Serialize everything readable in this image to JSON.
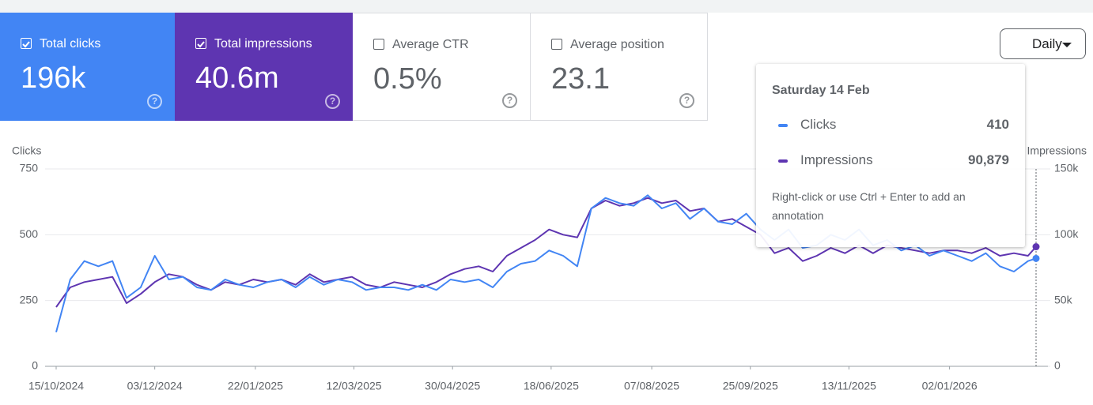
{
  "cards": [
    {
      "label": "Total clicks",
      "value": "196k",
      "checked": true,
      "color": "#4285f4"
    },
    {
      "label": "Total impressions",
      "value": "40.6m",
      "checked": true,
      "color": "#5e35b1"
    },
    {
      "label": "Average CTR",
      "value": "0.5%",
      "checked": false,
      "color": "#ffffff"
    },
    {
      "label": "Average position",
      "value": "23.1",
      "checked": false,
      "color": "#ffffff"
    }
  ],
  "period_selector": "Daily",
  "tooltip": {
    "date": "Saturday 14 Feb",
    "values": [
      "410",
      "90,879"
    ],
    "hint": "Right-click or use Ctrl + Enter to add an annotation"
  },
  "chart_data": {
    "type": "line",
    "y_label": "Clicks",
    "y2_label": "Impressions",
    "x": [
      "15/10/2024",
      "22/10/2024",
      "29/10/2024",
      "05/11/2024",
      "12/11/2024",
      "19/11/2024",
      "26/11/2024",
      "03/12/2024",
      "10/12/2024",
      "17/12/2024",
      "24/12/2024",
      "31/12/2024",
      "07/01/2025",
      "14/01/2025",
      "21/01/2025",
      "28/01/2025",
      "04/02/2025",
      "11/02/2025",
      "18/02/2025",
      "25/02/2025",
      "04/03/2025",
      "11/03/2025",
      "18/03/2025",
      "25/03/2025",
      "01/04/2025",
      "08/04/2025",
      "15/04/2025",
      "22/04/2025",
      "29/04/2025",
      "06/05/2025",
      "13/05/2025",
      "20/05/2025",
      "27/05/2025",
      "03/06/2025",
      "10/06/2025",
      "17/06/2025",
      "24/06/2025",
      "01/07/2025",
      "08/07/2025",
      "15/07/2025",
      "22/07/2025",
      "29/07/2025",
      "05/08/2025",
      "12/08/2025",
      "19/08/2025",
      "26/08/2025",
      "02/09/2025",
      "09/09/2025",
      "16/09/2025",
      "23/09/2025",
      "30/09/2025",
      "07/10/2025",
      "14/10/2025",
      "21/10/2025",
      "28/10/2025",
      "04/11/2025",
      "11/11/2025",
      "18/11/2025",
      "25/11/2025",
      "02/12/2025",
      "09/12/2025",
      "16/12/2025",
      "23/12/2025",
      "30/12/2025",
      "06/01/2026",
      "13/01/2026",
      "20/01/2026",
      "27/01/2026",
      "03/02/2026",
      "10/02/2026",
      "14/02/2026"
    ],
    "series": [
      {
        "name": "Clicks",
        "color": "#4285f4",
        "values": [
          130,
          330,
          400,
          380,
          400,
          260,
          300,
          420,
          330,
          340,
          300,
          290,
          330,
          310,
          300,
          320,
          330,
          300,
          340,
          310,
          330,
          320,
          290,
          300,
          300,
          290,
          310,
          290,
          330,
          320,
          330,
          300,
          360,
          390,
          400,
          440,
          420,
          380,
          600,
          640,
          620,
          610,
          650,
          600,
          620,
          560,
          600,
          550,
          540,
          580,
          520,
          480,
          520,
          450,
          460,
          500,
          480,
          520,
          460,
          480,
          440,
          460,
          420,
          440,
          420,
          400,
          430,
          380,
          360,
          400,
          410
        ]
      },
      {
        "name": "Impressions",
        "color": "#5e35b1",
        "axis": "y2",
        "values": [
          45000,
          60000,
          64000,
          66000,
          68000,
          48000,
          55000,
          64000,
          70000,
          68000,
          62000,
          58000,
          64000,
          62000,
          66000,
          64000,
          66000,
          62000,
          70000,
          64000,
          66000,
          68000,
          62000,
          60000,
          64000,
          62000,
          60000,
          64000,
          70000,
          74000,
          76000,
          72000,
          84000,
          90000,
          96000,
          104000,
          100000,
          98000,
          120000,
          126000,
          122000,
          124000,
          128000,
          124000,
          126000,
          118000,
          120000,
          110000,
          112000,
          106000,
          100000,
          86000,
          90000,
          80000,
          84000,
          90000,
          86000,
          92000,
          86000,
          92000,
          90000,
          88000,
          86000,
          88000,
          88000,
          86000,
          90000,
          84000,
          86000,
          84000,
          90879
        ]
      }
    ],
    "xlim": [
      "15/10/2024",
      "14/02/2026"
    ],
    "xticks": [
      "15/10/2024",
      "03/12/2024",
      "22/01/2025",
      "12/03/2025",
      "30/04/2025",
      "18/06/2025",
      "07/08/2025",
      "25/09/2025",
      "13/11/2025",
      "02/01/2026"
    ],
    "ylim": [
      0,
      750
    ],
    "yticks": [
      0,
      250,
      500,
      750
    ],
    "y2lim": [
      0,
      150000
    ],
    "y2ticks": [
      0,
      {
        "value": 50000,
        "label": "50k"
      },
      {
        "value": 100000,
        "label": "100k"
      },
      {
        "value": 150000,
        "label": "150k"
      }
    ],
    "grid": true
  }
}
